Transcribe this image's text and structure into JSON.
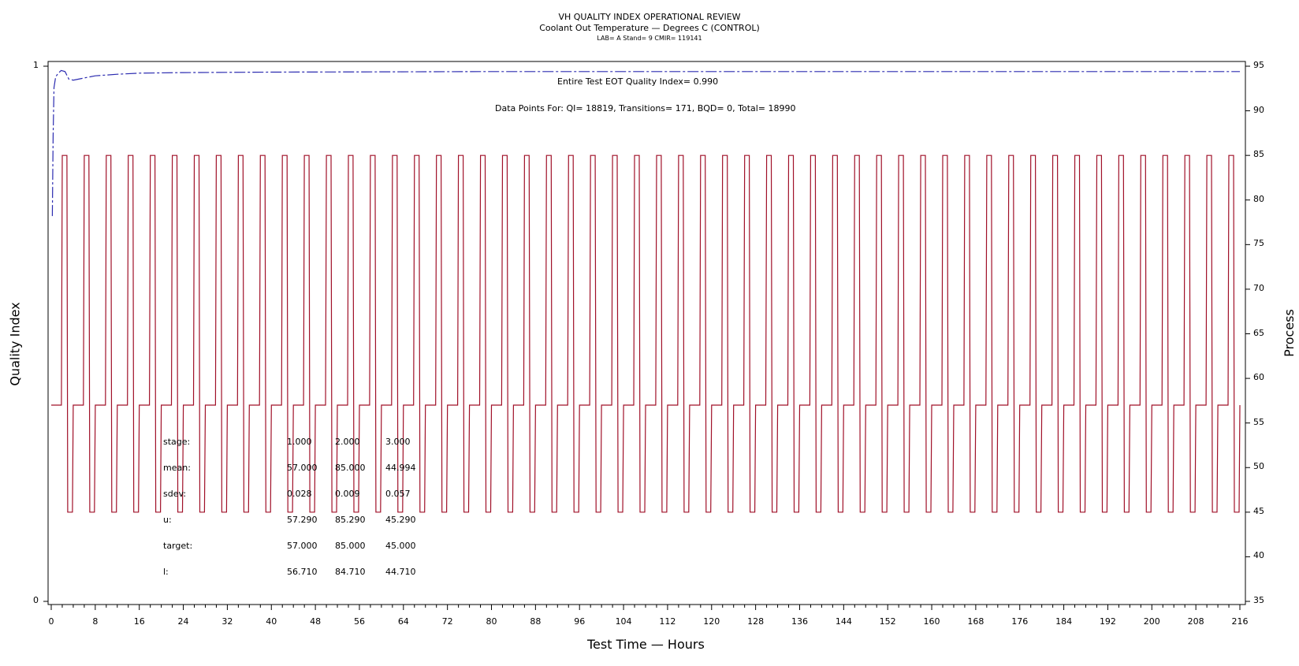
{
  "title": "VH QUALITY INDEX OPERATIONAL REVIEW",
  "subtitle": "Coolant Out Temperature — Degrees C (CONTROL)",
  "info_line": "LAB= A Stand= 9 CMIR= 119141",
  "annotations": {
    "quality_index_text": "Entire Test EOT Quality Index=   0.990",
    "data_points_text": "Data Points For: QI= 18819, Transitions=   171, BQD=     0, Total= 18990"
  },
  "stats_table": {
    "rows": [
      {
        "label": "stage:",
        "values": [
          "1.000",
          "2.000",
          "3.000"
        ]
      },
      {
        "label": "mean:",
        "values": [
          "57.000",
          "85.000",
          "44.994"
        ]
      },
      {
        "label": "sdev:",
        "values": [
          "0.028",
          "0.009",
          "0.057"
        ]
      },
      {
        "label": "u:",
        "values": [
          "57.290",
          "85.290",
          "45.290"
        ]
      },
      {
        "label": "target:",
        "values": [
          "57.000",
          "85.000",
          "45.000"
        ]
      },
      {
        "label": "l:",
        "values": [
          "56.710",
          "84.710",
          "44.710"
        ]
      }
    ]
  },
  "colors": {
    "process_line": "#a01028",
    "quality_line": "#2b2bb0",
    "axis": "#000000"
  },
  "chart_data": {
    "type": "line",
    "xlabel": "Test Time — Hours",
    "ylabel_left": "Quality Index",
    "ylabel_right": "Process",
    "xlim": [
      0,
      216
    ],
    "ylim_left": [
      0,
      1
    ],
    "ylim_right": [
      35,
      95
    ],
    "x_ticks": [
      0,
      8,
      16,
      24,
      32,
      40,
      48,
      56,
      64,
      72,
      80,
      88,
      96,
      104,
      112,
      120,
      128,
      136,
      144,
      152,
      160,
      168,
      176,
      184,
      192,
      200,
      208,
      216
    ],
    "y_ticks_left": [
      0,
      1
    ],
    "y_ticks_right": [
      35,
      40,
      45,
      50,
      55,
      60,
      65,
      70,
      75,
      80,
      85,
      90,
      95
    ],
    "grid": false,
    "process_cycle": {
      "period_hours": 4,
      "cycles": 54,
      "start_hour": 0,
      "stage_levels": [
        57,
        85,
        45
      ],
      "stage_durations_hours": [
        2,
        1,
        1
      ],
      "transition_hours": 0.15
    },
    "quality_series": {
      "x": [
        0.2,
        0.35,
        0.5,
        0.8,
        1.2,
        1.8,
        2.5,
        3.2,
        4,
        6,
        8,
        12,
        16,
        24,
        40,
        80,
        120,
        160,
        200,
        216
      ],
      "y": [
        0.72,
        0.87,
        0.96,
        0.98,
        0.986,
        0.992,
        0.99,
        0.976,
        0.974,
        0.978,
        0.982,
        0.985,
        0.987,
        0.988,
        0.989,
        0.99,
        0.99,
        0.99,
        0.99,
        0.99
      ]
    }
  }
}
